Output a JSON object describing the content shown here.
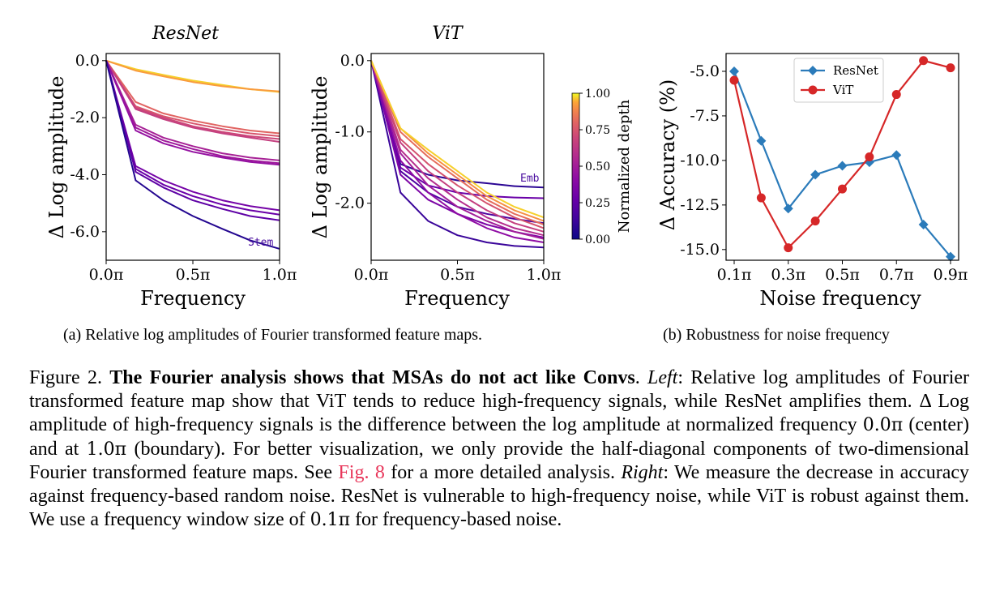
{
  "subcaptions": {
    "a": "(a) Relative log amplitudes of Fourier transformed feature maps.",
    "b": "(b) Robustness for noise frequency"
  },
  "caption": {
    "figure_label": "Figure 2.",
    "bold_title": "The Fourier analysis shows that MSAs do not act like Convs",
    "left_label": "Left",
    "left_text": ": Relative log amplitudes of Fourier transformed feature map show that ViT tends to reduce high-frequency signals, while ResNet amplifies them. Δ Log amplitude of high-frequency signals is the difference between the log amplitude at normalized frequency ",
    "val_center": "0.0π",
    "center_word": " (center) and at ",
    "val_boundary": "1.0π",
    "boundary_text": " (boundary). For better visualization, we only provide the half-diagonal components of two-dimensional Fourier transformed feature maps. See ",
    "fig_ref": "Fig. 8",
    "after_ref": " for a more detailed analysis. ",
    "right_label": "Right",
    "right_text": ": We measure the decrease in accuracy against frequency-based random noise. ResNet is vulnerable to high-frequency noise, while ViT is robust against them. We use a frequency window size of ",
    "val_window": "0.1π",
    "end_text": " for frequency-based noise."
  },
  "chart_data": [
    {
      "type": "line",
      "title": "ResNet",
      "xlabel": "Frequency",
      "ylabel": "Δ Log amplitude",
      "xlim": [
        0.0,
        1.0
      ],
      "ylim": [
        -7.0,
        0.25
      ],
      "xticks": [
        0.0,
        0.5,
        1.0
      ],
      "xticklabels": [
        "0.0π",
        "0.5π",
        "1.0π"
      ],
      "yticks": [
        0.0,
        -2.0,
        -4.0,
        -6.0
      ],
      "yticklabels": [
        "0.0",
        "-2.0",
        "-4.0",
        "-6.0"
      ],
      "colorscale": "plasma",
      "x": [
        0.0,
        0.17,
        0.33,
        0.5,
        0.67,
        0.83,
        1.0
      ],
      "series": [
        {
          "depth": 0.97,
          "values": [
            0.0,
            -0.3,
            -0.5,
            -0.7,
            -0.85,
            -1.0,
            -1.1
          ]
        },
        {
          "depth": 0.92,
          "values": [
            0.0,
            -0.35,
            -0.55,
            -0.75,
            -0.9,
            -1.0,
            -1.08
          ]
        },
        {
          "depth": 0.8,
          "values": [
            0.0,
            -1.45,
            -1.85,
            -2.1,
            -2.3,
            -2.45,
            -2.55
          ]
        },
        {
          "depth": 0.75,
          "values": [
            0.0,
            -1.6,
            -1.95,
            -2.2,
            -2.4,
            -2.55,
            -2.65
          ]
        },
        {
          "depth": 0.7,
          "values": [
            0.0,
            -1.65,
            -2.0,
            -2.3,
            -2.5,
            -2.65,
            -2.75
          ]
        },
        {
          "depth": 0.66,
          "values": [
            0.0,
            -1.7,
            -2.05,
            -2.35,
            -2.55,
            -2.7,
            -2.85
          ]
        },
        {
          "depth": 0.52,
          "values": [
            0.0,
            -2.25,
            -2.7,
            -3.0,
            -3.25,
            -3.4,
            -3.5
          ]
        },
        {
          "depth": 0.48,
          "values": [
            0.0,
            -2.35,
            -2.8,
            -3.1,
            -3.35,
            -3.5,
            -3.6
          ]
        },
        {
          "depth": 0.44,
          "values": [
            0.0,
            -2.45,
            -2.9,
            -3.2,
            -3.4,
            -3.55,
            -3.65
          ]
        },
        {
          "depth": 0.32,
          "values": [
            0.0,
            -3.7,
            -4.2,
            -4.6,
            -4.9,
            -5.1,
            -5.25
          ]
        },
        {
          "depth": 0.28,
          "values": [
            0.0,
            -3.8,
            -4.35,
            -4.75,
            -5.05,
            -5.25,
            -5.4
          ]
        },
        {
          "depth": 0.24,
          "values": [
            0.0,
            -3.9,
            -4.45,
            -4.9,
            -5.2,
            -5.45,
            -5.6
          ]
        },
        {
          "depth": 0.06,
          "values": [
            0.0,
            -4.2,
            -4.9,
            -5.45,
            -5.9,
            -6.3,
            -6.6
          ]
        }
      ],
      "annotation": {
        "text": "Stem",
        "x": 0.88,
        "y": -6.1
      }
    },
    {
      "type": "line",
      "title": "ViT",
      "xlabel": "Frequency",
      "ylabel": "Δ Log amplitude",
      "xlim": [
        0.0,
        1.0
      ],
      "ylim": [
        -2.8,
        0.1
      ],
      "xticks": [
        0.0,
        0.5,
        1.0
      ],
      "xticklabels": [
        "0.0π",
        "0.5π",
        "1.0π"
      ],
      "yticks": [
        0.0,
        -1.0,
        -2.0
      ],
      "yticklabels": [
        "0.0",
        "-1.0",
        "-2.0"
      ],
      "colorscale": "plasma",
      "x": [
        0.0,
        0.17,
        0.33,
        0.5,
        0.67,
        0.83,
        1.0
      ],
      "series": [
        {
          "depth": 0.08,
          "values": [
            0.0,
            -1.45,
            -1.6,
            -1.68,
            -1.72,
            -1.76,
            -1.78
          ]
        },
        {
          "depth": 0.18,
          "values": [
            0.0,
            -1.55,
            -1.85,
            -2.05,
            -2.15,
            -2.22,
            -2.28
          ]
        },
        {
          "depth": 0.12,
          "values": [
            0.0,
            -1.85,
            -2.25,
            -2.45,
            -2.55,
            -2.6,
            -2.62
          ]
        },
        {
          "depth": 0.28,
          "values": [
            0.0,
            -1.5,
            -1.75,
            -1.85,
            -1.9,
            -1.92,
            -1.93
          ]
        },
        {
          "depth": 0.35,
          "values": [
            0.0,
            -1.6,
            -1.95,
            -2.15,
            -2.3,
            -2.4,
            -2.48
          ]
        },
        {
          "depth": 0.42,
          "values": [
            0.0,
            -1.4,
            -1.85,
            -2.15,
            -2.35,
            -2.48,
            -2.55
          ]
        },
        {
          "depth": 0.5,
          "values": [
            0.0,
            -1.3,
            -1.75,
            -2.05,
            -2.25,
            -2.4,
            -2.5
          ]
        },
        {
          "depth": 0.58,
          "values": [
            0.0,
            -1.25,
            -1.65,
            -1.95,
            -2.2,
            -2.35,
            -2.45
          ]
        },
        {
          "depth": 0.66,
          "values": [
            0.0,
            -1.15,
            -1.55,
            -1.85,
            -2.1,
            -2.28,
            -2.4
          ]
        },
        {
          "depth": 0.74,
          "values": [
            0.0,
            -1.1,
            -1.45,
            -1.75,
            -2.0,
            -2.2,
            -2.35
          ]
        },
        {
          "depth": 0.82,
          "values": [
            0.0,
            -1.0,
            -1.35,
            -1.65,
            -1.95,
            -2.15,
            -2.3
          ]
        },
        {
          "depth": 0.9,
          "values": [
            0.0,
            -0.95,
            -1.3,
            -1.6,
            -1.9,
            -2.1,
            -2.25
          ]
        },
        {
          "depth": 0.97,
          "values": [
            0.0,
            -0.95,
            -1.25,
            -1.55,
            -1.85,
            -2.05,
            -2.2
          ]
        }
      ],
      "annotation": {
        "text": "Emb",
        "x": 0.88,
        "y": -1.6
      }
    },
    {
      "type": "colorbar",
      "label": "Normalized depth",
      "colorscale": "plasma",
      "range": [
        0.0,
        1.0
      ],
      "ticks": [
        1.0,
        0.75,
        0.5,
        0.25,
        0.0
      ],
      "ticklabels": [
        "1.00",
        "0.75",
        "0.50",
        "0.25",
        "0.00"
      ]
    },
    {
      "type": "line",
      "xlabel": "Noise frequency",
      "ylabel": "Δ Accuracy (%)",
      "xlim": [
        0.07,
        0.93
      ],
      "ylim": [
        -15.6,
        -4.0
      ],
      "xticks": [
        0.1,
        0.3,
        0.5,
        0.7,
        0.9
      ],
      "xticklabels": [
        "0.1π",
        "0.3π",
        "0.5π",
        "0.7π",
        "0.9π"
      ],
      "yticks": [
        -5.0,
        -7.5,
        -10.0,
        -12.5,
        -15.0
      ],
      "yticklabels": [
        "-5.0",
        "-7.5",
        "-10.0",
        "-12.5",
        "-15.0"
      ],
      "legend": "top-center",
      "x": [
        0.1,
        0.2,
        0.3,
        0.4,
        0.5,
        0.6,
        0.7,
        0.8,
        0.9
      ],
      "series": [
        {
          "name": "ResNet",
          "color": "#2b7bba",
          "marker": "diamond",
          "values": [
            -5.0,
            -8.9,
            -12.7,
            -10.8,
            -10.3,
            -10.1,
            -9.7,
            -13.6,
            -15.4
          ]
        },
        {
          "name": "ViT",
          "color": "#d62728",
          "marker": "circle",
          "values": [
            -5.5,
            -12.1,
            -14.9,
            -13.4,
            -11.6,
            -9.8,
            -6.3,
            -4.4,
            -4.8
          ]
        }
      ]
    }
  ]
}
